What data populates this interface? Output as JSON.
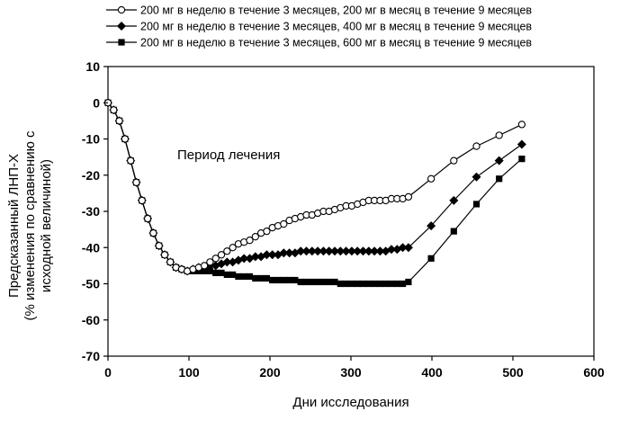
{
  "chart_data": {
    "type": "line",
    "xlabel": "Дни исследования",
    "ylabel": [
      "Предсказанный ЛНП-Х",
      "(% изменения по сравнению с",
      "исходной величиной)"
    ],
    "xlim": [
      0,
      600
    ],
    "ylim": [
      -70,
      10
    ],
    "xticks": [
      0,
      100,
      200,
      300,
      400,
      500,
      600
    ],
    "yticks": [
      10,
      0,
      -10,
      -20,
      -30,
      -40,
      -50,
      -60,
      -70
    ],
    "grid": false,
    "legend_position": "top",
    "annotation": "Период лечения",
    "series": [
      {
        "name": "200 мг в неделю в течение 3 месяцев, 200 мг в месяц в течение 9 месяцев",
        "marker": "circle-open",
        "x": [
          0,
          7,
          14,
          21,
          28,
          35,
          42,
          49,
          56,
          63,
          70,
          77,
          84,
          91,
          98,
          105,
          112,
          119,
          126,
          133,
          140,
          147,
          154,
          161,
          168,
          175,
          182,
          189,
          196,
          203,
          210,
          217,
          224,
          231,
          238,
          245,
          252,
          259,
          266,
          273,
          280,
          287,
          294,
          301,
          308,
          315,
          322,
          329,
          336,
          343,
          350,
          357,
          364,
          371,
          399,
          427,
          455,
          483,
          511
        ],
        "y": [
          0,
          -2,
          -5,
          -10,
          -16,
          -22,
          -27,
          -32,
          -36,
          -39.5,
          -42,
          -44,
          -45.5,
          -46,
          -46.5,
          -46,
          -45.5,
          -45,
          -44,
          -43,
          -42,
          -41,
          -40,
          -39,
          -38.5,
          -38,
          -37,
          -36,
          -35.5,
          -34.5,
          -34,
          -33.5,
          -32.5,
          -32,
          -31.5,
          -31,
          -31,
          -30.5,
          -30,
          -30,
          -29.5,
          -29,
          -28.5,
          -28.5,
          -28,
          -27.5,
          -27,
          -27,
          -27,
          -27,
          -26.5,
          -26.5,
          -26.5,
          -26,
          -21,
          -16,
          -12,
          -9,
          -6
        ]
      },
      {
        "name": "200 мг в неделю в течение 3 месяцев, 400 мг в месяц в течение 9 месяцев",
        "marker": "diamond-filled",
        "x": [
          0,
          7,
          14,
          21,
          28,
          35,
          42,
          49,
          56,
          63,
          70,
          77,
          84,
          91,
          98,
          105,
          112,
          119,
          126,
          133,
          140,
          147,
          154,
          161,
          168,
          175,
          182,
          189,
          196,
          203,
          210,
          217,
          224,
          231,
          238,
          245,
          252,
          259,
          266,
          273,
          280,
          287,
          294,
          301,
          308,
          315,
          322,
          329,
          336,
          343,
          350,
          357,
          364,
          371,
          399,
          427,
          455,
          483,
          511
        ],
        "y": [
          0,
          -2,
          -5,
          -10,
          -16,
          -22,
          -27,
          -32,
          -36,
          -39.5,
          -42,
          -44,
          -45.5,
          -46,
          -46.5,
          -46,
          -45.5,
          -45.5,
          -45,
          -45,
          -44.5,
          -44,
          -44,
          -43.5,
          -43,
          -43,
          -42.5,
          -42.5,
          -42,
          -42,
          -42,
          -41.5,
          -41.5,
          -41.5,
          -41,
          -41,
          -41,
          -41,
          -41,
          -41,
          -41,
          -41,
          -41,
          -41,
          -41,
          -41,
          -41,
          -41,
          -41,
          -41,
          -40.5,
          -40.5,
          -40,
          -40,
          -34,
          -27,
          -20.5,
          -16,
          -11.5
        ]
      },
      {
        "name": "200 мг в неделю в течение 3 месяцев, 600 мг в месяц в течение 9 месяцев",
        "marker": "square-filled",
        "x": [
          0,
          7,
          14,
          21,
          28,
          35,
          42,
          49,
          56,
          63,
          70,
          77,
          84,
          91,
          98,
          105,
          112,
          119,
          126,
          133,
          140,
          147,
          154,
          161,
          168,
          175,
          182,
          189,
          196,
          203,
          210,
          217,
          224,
          231,
          238,
          245,
          252,
          259,
          266,
          273,
          280,
          287,
          294,
          301,
          308,
          315,
          322,
          329,
          336,
          343,
          350,
          357,
          364,
          371,
          399,
          427,
          455,
          483,
          511
        ],
        "y": [
          0,
          -2,
          -5,
          -10,
          -16,
          -22,
          -27,
          -32,
          -36,
          -39.5,
          -42,
          -44,
          -45.5,
          -46,
          -46.5,
          -46.5,
          -46.5,
          -46.5,
          -46.5,
          -47,
          -47,
          -47.5,
          -47.5,
          -48,
          -48,
          -48,
          -48.5,
          -48.5,
          -48.5,
          -49,
          -49,
          -49,
          -49,
          -49,
          -49.5,
          -49.5,
          -49.5,
          -49.5,
          -49.5,
          -49.5,
          -49.5,
          -50,
          -50,
          -50,
          -50,
          -50,
          -50,
          -50,
          -50,
          -50,
          -50,
          -50,
          -50,
          -49.5,
          -43,
          -35.5,
          -28,
          -21,
          -15.5
        ]
      }
    ]
  }
}
